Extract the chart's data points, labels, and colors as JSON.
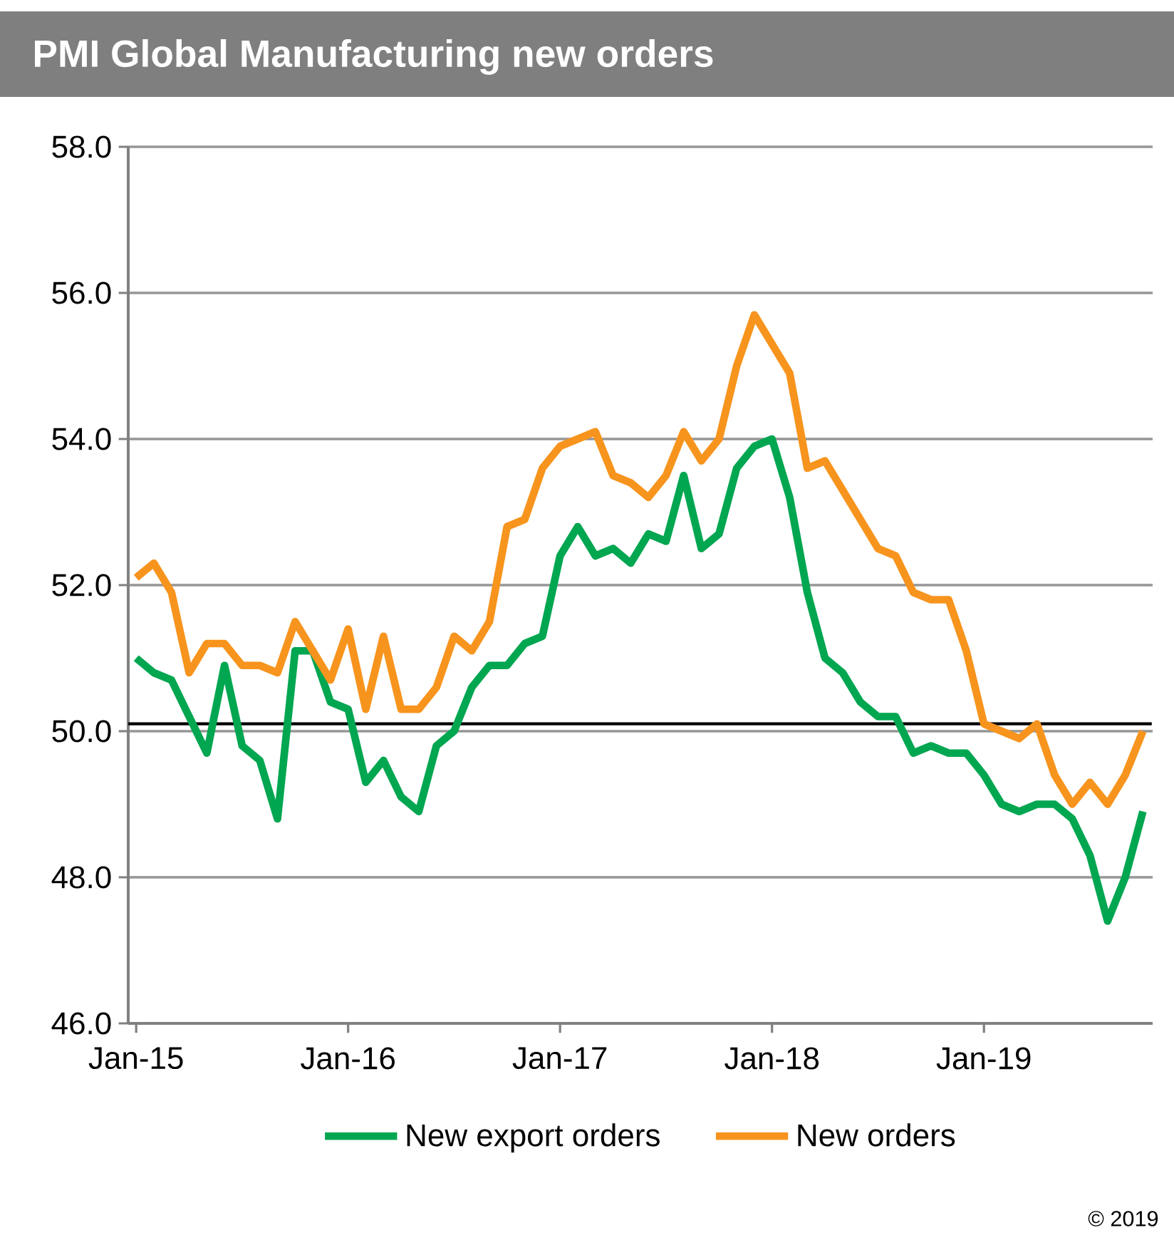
{
  "chart_data": {
    "type": "line",
    "title": "PMI Global Manufacturing new orders",
    "categories": [
      "Jan-15",
      null,
      null,
      null,
      null,
      null,
      null,
      null,
      null,
      null,
      null,
      null,
      "Jan-16",
      null,
      null,
      null,
      null,
      null,
      null,
      null,
      null,
      null,
      null,
      null,
      "Jan-17",
      null,
      null,
      null,
      null,
      null,
      null,
      null,
      null,
      null,
      null,
      null,
      "Jan-18",
      null,
      null,
      null,
      null,
      null,
      null,
      null,
      null,
      null,
      null,
      null,
      "Jan-19",
      null,
      null,
      null,
      null,
      null,
      null,
      null,
      null,
      null
    ],
    "series": [
      {
        "name": "New export orders",
        "color": "#00a650",
        "values": [
          51.0,
          50.8,
          50.7,
          50.2,
          49.7,
          50.9,
          49.8,
          49.6,
          48.8,
          51.1,
          51.1,
          50.4,
          50.3,
          49.3,
          49.6,
          49.1,
          48.9,
          49.8,
          50.0,
          50.6,
          50.9,
          50.9,
          51.2,
          51.3,
          52.4,
          52.8,
          52.4,
          52.5,
          52.3,
          52.7,
          52.6,
          53.5,
          52.5,
          52.7,
          53.6,
          53.9,
          54.0,
          53.2,
          51.9,
          51.0,
          50.8,
          50.4,
          50.2,
          50.2,
          49.7,
          49.8,
          49.7,
          49.7,
          49.4,
          49.0,
          48.9,
          49.0,
          49.0,
          48.8,
          48.3,
          47.4,
          48.0,
          48.9
        ]
      },
      {
        "name": "New orders",
        "color": "#f7941d",
        "values": [
          52.1,
          52.3,
          51.9,
          50.8,
          51.2,
          51.2,
          50.9,
          50.9,
          50.8,
          51.5,
          51.1,
          50.7,
          51.4,
          50.3,
          51.3,
          50.3,
          50.3,
          50.6,
          51.3,
          51.1,
          51.5,
          52.8,
          52.9,
          53.6,
          53.9,
          54.0,
          54.1,
          53.5,
          53.4,
          53.2,
          53.5,
          54.1,
          53.7,
          54.0,
          55.0,
          55.7,
          55.3,
          54.9,
          53.6,
          53.7,
          53.3,
          52.9,
          52.5,
          52.4,
          51.9,
          51.8,
          51.8,
          51.1,
          50.1,
          50.0,
          49.9,
          50.1,
          49.4,
          49.0,
          49.3,
          49.0,
          49.4,
          50.0
        ]
      }
    ],
    "ylim": [
      46,
      58
    ],
    "yticks": [
      {
        "value": 46,
        "label": "46.0"
      },
      {
        "value": 48,
        "label": "48.0"
      },
      {
        "value": 50,
        "label": "50.0"
      },
      {
        "value": 52,
        "label": "52.0"
      },
      {
        "value": 54,
        "label": "54.0"
      },
      {
        "value": 56,
        "label": "56.0"
      },
      {
        "value": 58,
        "label": "58.0"
      }
    ],
    "ref_lines": [
      {
        "axis": "y",
        "value": 50.1,
        "color": "#000000"
      }
    ],
    "grid": "y",
    "legend": "bottom",
    "marker": "none",
    "line_style": "solid",
    "annotations": [
      "© 2019"
    ]
  }
}
